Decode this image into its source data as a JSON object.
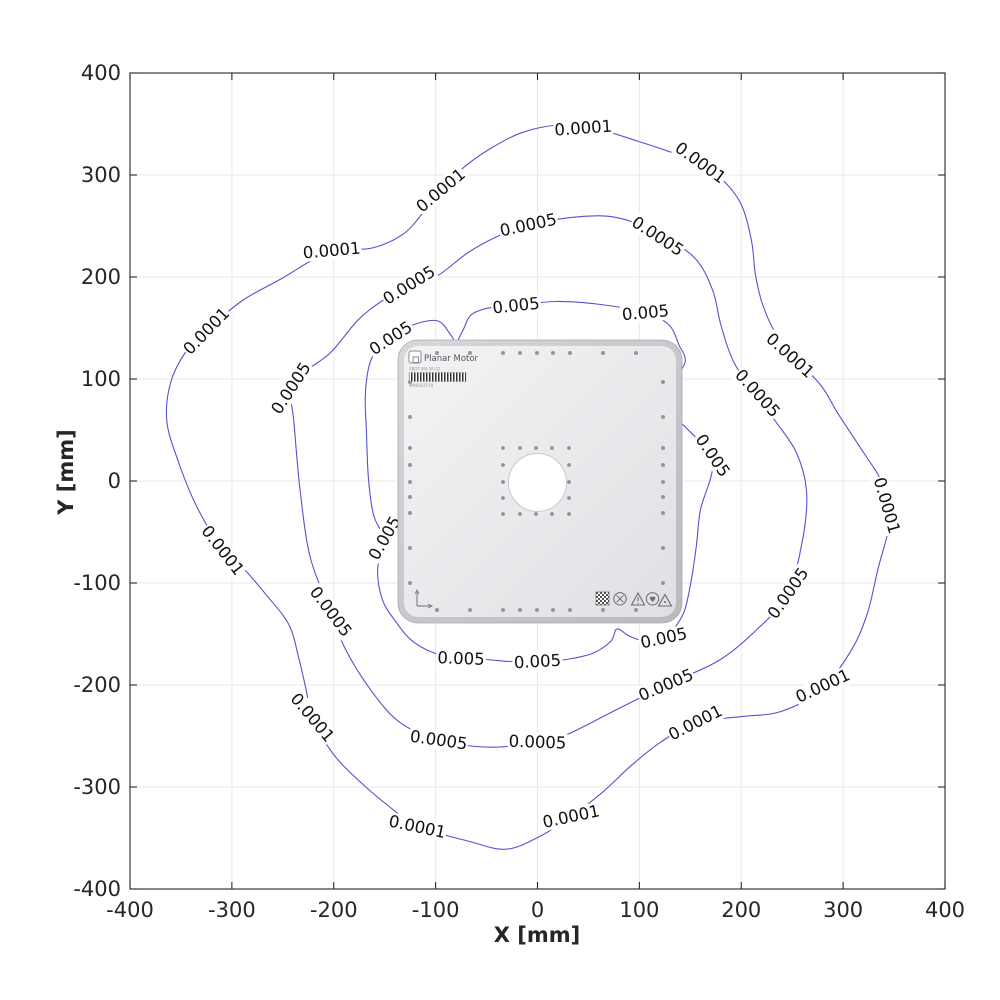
{
  "figure": {
    "background": "#ffffff"
  },
  "axes": {
    "xlabel": "X [mm]",
    "ylabel": "Y [mm]",
    "xlim": [
      -400,
      400
    ],
    "ylim": [
      -400,
      400
    ],
    "xticks": [
      -400,
      -300,
      -200,
      -100,
      0,
      100,
      200,
      300,
      400
    ],
    "yticks": [
      -400,
      -300,
      -200,
      -100,
      0,
      100,
      200,
      300,
      400
    ],
    "tick_color": "#262626",
    "axis_color": "#3a3a3a",
    "grid_color": "#e9e9e9"
  },
  "chart_data": {
    "type": "contour",
    "title": "",
    "xlabel": "X [mm]",
    "ylabel": "Y [mm]",
    "xlim": [
      -400,
      400
    ],
    "ylim": [
      -400,
      400
    ],
    "grid": true,
    "levels": [
      0.005,
      0.0005,
      0.0001
    ],
    "line_color": "#5254cf",
    "contours": [
      {
        "level": 0.0001,
        "label": "0.0001",
        "points": [
          [
            23,
            349
          ],
          [
            62,
            344
          ],
          [
            102,
            332
          ],
          [
            129,
            323
          ],
          [
            160,
            312
          ],
          [
            182,
            295
          ],
          [
            200,
            271
          ],
          [
            210,
            236
          ],
          [
            214,
            202
          ],
          [
            221,
            173
          ],
          [
            233,
            146
          ],
          [
            249,
            124
          ],
          [
            278,
            94
          ],
          [
            295,
            66
          ],
          [
            322,
            25
          ],
          [
            337,
            1
          ],
          [
            343,
            -24
          ],
          [
            345,
            -45
          ],
          [
            334,
            -87
          ],
          [
            324,
            -129
          ],
          [
            308,
            -166
          ],
          [
            278,
            -205
          ],
          [
            239,
            -226
          ],
          [
            200,
            -231
          ],
          [
            155,
            -237
          ],
          [
            121,
            -256
          ],
          [
            92,
            -279
          ],
          [
            64,
            -305
          ],
          [
            33,
            -329
          ],
          [
            3,
            -348
          ],
          [
            -31,
            -361
          ],
          [
            -68,
            -353
          ],
          [
            -118,
            -339
          ],
          [
            -142,
            -322
          ],
          [
            -173,
            -296
          ],
          [
            -201,
            -267
          ],
          [
            -221,
            -232
          ],
          [
            -227,
            -205
          ],
          [
            -234,
            -175
          ],
          [
            -244,
            -141
          ],
          [
            -266,
            -112
          ],
          [
            -292,
            -82
          ],
          [
            -309,
            -68
          ],
          [
            -335,
            -24
          ],
          [
            -354,
            23
          ],
          [
            -364,
            60
          ],
          [
            -360,
            97
          ],
          [
            -345,
            127
          ],
          [
            -325,
            147
          ],
          [
            -291,
            176
          ],
          [
            -252,
            198
          ],
          [
            -202,
            226
          ],
          [
            -164,
            228
          ],
          [
            -132,
            242
          ],
          [
            -110,
            266
          ],
          [
            -95,
            285
          ],
          [
            -73,
            307
          ],
          [
            -46,
            326
          ],
          [
            -14,
            342
          ]
        ],
        "labels": [
          {
            "x": 45,
            "y": 346,
            "rot": -4
          },
          {
            "x": 160,
            "y": 312,
            "rot": 36
          },
          {
            "x": 248,
            "y": 123,
            "rot": 42
          },
          {
            "x": 343,
            "y": -24,
            "rot": 74
          },
          {
            "x": 280,
            "y": -201,
            "rot": -25
          },
          {
            "x": 155,
            "y": -237,
            "rot": -27
          },
          {
            "x": 33,
            "y": -329,
            "rot": -12
          },
          {
            "x": -118,
            "y": -339,
            "rot": 12
          },
          {
            "x": -221,
            "y": -232,
            "rot": 50
          },
          {
            "x": -309,
            "y": -68,
            "rot": 52
          },
          {
            "x": -325,
            "y": 147,
            "rot": -46
          },
          {
            "x": -202,
            "y": 226,
            "rot": -5
          },
          {
            "x": -95,
            "y": 285,
            "rot": -40
          }
        ]
      },
      {
        "level": 0.0005,
        "label": "0.0005",
        "points": [
          [
            40,
            259
          ],
          [
            79,
            258
          ],
          [
            118,
            243
          ],
          [
            154,
            219
          ],
          [
            172,
            187
          ],
          [
            180,
            153
          ],
          [
            193,
            116
          ],
          [
            216,
            82
          ],
          [
            234,
            58
          ],
          [
            254,
            28
          ],
          [
            264,
            -9
          ],
          [
            261,
            -53
          ],
          [
            246,
            -110
          ],
          [
            217,
            -144
          ],
          [
            178,
            -176
          ],
          [
            126,
            -200
          ],
          [
            74,
            -226
          ],
          [
            28,
            -249
          ],
          [
            0,
            -256
          ],
          [
            -46,
            -261
          ],
          [
            -97,
            -254
          ],
          [
            -136,
            -236
          ],
          [
            -165,
            -203
          ],
          [
            -189,
            -164
          ],
          [
            -203,
            -128
          ],
          [
            -223,
            -75
          ],
          [
            -233,
            -9
          ],
          [
            -239,
            57
          ],
          [
            -242,
            91
          ],
          [
            -227,
            108
          ],
          [
            -203,
            126
          ],
          [
            -176,
            158
          ],
          [
            -152,
            177
          ],
          [
            -126,
            192
          ],
          [
            -100,
            200
          ],
          [
            -68,
            224
          ],
          [
            -41,
            239
          ],
          [
            -9,
            251
          ]
        ],
        "labels": [
          {
            "x": -9,
            "y": 251,
            "rot": -12
          },
          {
            "x": 118,
            "y": 240,
            "rot": 33
          },
          {
            "x": 216,
            "y": 86,
            "rot": 48
          },
          {
            "x": 246,
            "y": -110,
            "rot": -55
          },
          {
            "x": 126,
            "y": -200,
            "rot": -23
          },
          {
            "x": 0,
            "y": -256,
            "rot": 2
          },
          {
            "x": -97,
            "y": -254,
            "rot": 8
          },
          {
            "x": -203,
            "y": -128,
            "rot": 53
          },
          {
            "x": -242,
            "y": 91,
            "rot": -57
          },
          {
            "x": -126,
            "y": 192,
            "rot": -32
          }
        ]
      },
      {
        "level": 0.005,
        "label": "0.005",
        "points": [
          [
            -168,
            50
          ],
          [
            -166,
            3
          ],
          [
            -161,
            -33
          ],
          [
            -151,
            -58
          ],
          [
            -157,
            -87
          ],
          [
            -152,
            -117
          ],
          [
            -139,
            -138
          ],
          [
            -124,
            -156
          ],
          [
            -103,
            -168
          ],
          [
            -75,
            -174
          ],
          [
            -51,
            -175
          ],
          [
            -26,
            -177
          ],
          [
            0,
            -177
          ],
          [
            28,
            -175
          ],
          [
            54,
            -169
          ],
          [
            72,
            -157
          ],
          [
            78,
            -145
          ],
          [
            90,
            -152
          ],
          [
            106,
            -157
          ],
          [
            124,
            -154
          ],
          [
            133,
            -146
          ],
          [
            144,
            -128
          ],
          [
            151,
            -97
          ],
          [
            156,
            -63
          ],
          [
            160,
            -28
          ],
          [
            170,
            3
          ],
          [
            172,
            23
          ],
          [
            160,
            38
          ],
          [
            143,
            55
          ],
          [
            131,
            70
          ],
          [
            141,
            81
          ],
          [
            133,
            94
          ],
          [
            145,
            117
          ],
          [
            139,
            133
          ],
          [
            129,
            153
          ],
          [
            106,
            165
          ],
          [
            62,
            173
          ],
          [
            18,
            176
          ],
          [
            -21,
            172
          ],
          [
            -46,
            170
          ],
          [
            -65,
            163
          ],
          [
            -73,
            148
          ],
          [
            -80,
            136
          ],
          [
            -85,
            143
          ],
          [
            -98,
            157
          ],
          [
            -122,
            153
          ],
          [
            -144,
            140
          ],
          [
            -156,
            131
          ],
          [
            -165,
            114
          ],
          [
            -169,
            84
          ]
        ],
        "labels": [
          {
            "x": -21,
            "y": 172,
            "rot": -6
          },
          {
            "x": 106,
            "y": 165,
            "rot": -5
          },
          {
            "x": 172,
            "y": 25,
            "rot": 56
          },
          {
            "x": 124,
            "y": -154,
            "rot": -12
          },
          {
            "x": 0,
            "y": -177,
            "rot": -3
          },
          {
            "x": -75,
            "y": -174,
            "rot": 2
          },
          {
            "x": -144,
            "y": 140,
            "rot": -33
          },
          {
            "x": -150,
            "y": -56,
            "rot": -60
          }
        ]
      }
    ],
    "overlay_image": {
      "description": "Planar Motor XBOT mover plate photo at plot center",
      "x_extent_mm": [
        -136,
        143
      ],
      "y_extent_mm": [
        -139,
        138
      ]
    }
  },
  "device": {
    "brand": "Planar Motor",
    "model": "XBOT M4-56-02",
    "serial": "MN6002710",
    "icons": [
      "data-matrix",
      "circle-cross",
      "warning-triangle",
      "circle-heart",
      "caution-triangle"
    ]
  }
}
